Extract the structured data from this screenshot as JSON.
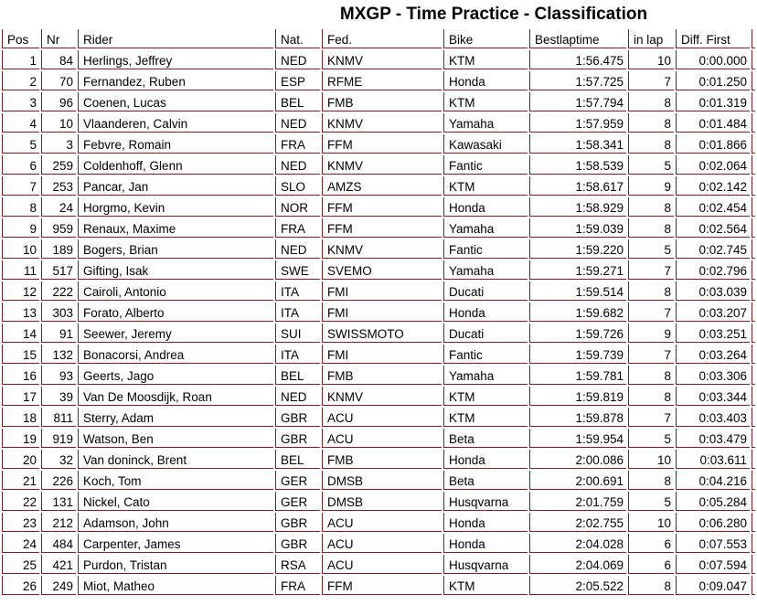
{
  "title": "MXGP - Time Practice - Classification",
  "colors": {
    "border": "#802020",
    "text": "#000000",
    "background": "#ffffff"
  },
  "table": {
    "columns": [
      {
        "key": "pos",
        "label": "Pos",
        "align": "right"
      },
      {
        "key": "nr",
        "label": "Nr",
        "align": "right"
      },
      {
        "key": "rider",
        "label": "Rider",
        "align": "left"
      },
      {
        "key": "nat",
        "label": "Nat.",
        "align": "left"
      },
      {
        "key": "fed",
        "label": "Fed.",
        "align": "left"
      },
      {
        "key": "bike",
        "label": "Bike",
        "align": "left"
      },
      {
        "key": "best",
        "label": "Bestlaptime",
        "align": "right"
      },
      {
        "key": "lap",
        "label": "in lap",
        "align": "right"
      },
      {
        "key": "diff",
        "label": "Diff. First",
        "align": "right"
      }
    ],
    "rows": [
      {
        "pos": "1",
        "nr": "84",
        "rider": "Herlings, Jeffrey",
        "nat": "NED",
        "fed": "KNMV",
        "bike": "KTM",
        "best": "1:56.475",
        "lap": "10",
        "diff": "0:00.000"
      },
      {
        "pos": "2",
        "nr": "70",
        "rider": "Fernandez, Ruben",
        "nat": "ESP",
        "fed": "RFME",
        "bike": "Honda",
        "best": "1:57.725",
        "lap": "7",
        "diff": "0:01.250"
      },
      {
        "pos": "3",
        "nr": "96",
        "rider": "Coenen, Lucas",
        "nat": "BEL",
        "fed": "FMB",
        "bike": "KTM",
        "best": "1:57.794",
        "lap": "8",
        "diff": "0:01.319"
      },
      {
        "pos": "4",
        "nr": "10",
        "rider": "Vlaanderen, Calvin",
        "nat": "NED",
        "fed": "KNMV",
        "bike": "Yamaha",
        "best": "1:57.959",
        "lap": "8",
        "diff": "0:01.484"
      },
      {
        "pos": "5",
        "nr": "3",
        "rider": "Febvre, Romain",
        "nat": "FRA",
        "fed": "FFM",
        "bike": "Kawasaki",
        "best": "1:58.341",
        "lap": "8",
        "diff": "0:01.866"
      },
      {
        "pos": "6",
        "nr": "259",
        "rider": "Coldenhoff, Glenn",
        "nat": "NED",
        "fed": "KNMV",
        "bike": "Fantic",
        "best": "1:58.539",
        "lap": "5",
        "diff": "0:02.064"
      },
      {
        "pos": "7",
        "nr": "253",
        "rider": "Pancar, Jan",
        "nat": "SLO",
        "fed": "AMZS",
        "bike": "KTM",
        "best": "1:58.617",
        "lap": "9",
        "diff": "0:02.142"
      },
      {
        "pos": "8",
        "nr": "24",
        "rider": "Horgmo, Kevin",
        "nat": "NOR",
        "fed": "FFM",
        "bike": "Honda",
        "best": "1:58.929",
        "lap": "8",
        "diff": "0:02.454"
      },
      {
        "pos": "9",
        "nr": "959",
        "rider": "Renaux, Maxime",
        "nat": "FRA",
        "fed": "FFM",
        "bike": "Yamaha",
        "best": "1:59.039",
        "lap": "8",
        "diff": "0:02.564"
      },
      {
        "pos": "10",
        "nr": "189",
        "rider": "Bogers, Brian",
        "nat": "NED",
        "fed": "KNMV",
        "bike": "Fantic",
        "best": "1:59.220",
        "lap": "5",
        "diff": "0:02.745"
      },
      {
        "pos": "11",
        "nr": "517",
        "rider": "Gifting, Isak",
        "nat": "SWE",
        "fed": "SVEMO",
        "bike": "Yamaha",
        "best": "1:59.271",
        "lap": "7",
        "diff": "0:02.796"
      },
      {
        "pos": "12",
        "nr": "222",
        "rider": "Cairoli, Antonio",
        "nat": "ITA",
        "fed": "FMI",
        "bike": "Ducati",
        "best": "1:59.514",
        "lap": "8",
        "diff": "0:03.039"
      },
      {
        "pos": "13",
        "nr": "303",
        "rider": "Forato, Alberto",
        "nat": "ITA",
        "fed": "FMI",
        "bike": "Honda",
        "best": "1:59.682",
        "lap": "7",
        "diff": "0:03.207"
      },
      {
        "pos": "14",
        "nr": "91",
        "rider": "Seewer, Jeremy",
        "nat": "SUI",
        "fed": "SWISSMOTO",
        "bike": "Ducati",
        "best": "1:59.726",
        "lap": "9",
        "diff": "0:03.251"
      },
      {
        "pos": "15",
        "nr": "132",
        "rider": "Bonacorsi, Andrea",
        "nat": "ITA",
        "fed": "FMI",
        "bike": "Fantic",
        "best": "1:59.739",
        "lap": "7",
        "diff": "0:03.264"
      },
      {
        "pos": "16",
        "nr": "93",
        "rider": "Geerts, Jago",
        "nat": "BEL",
        "fed": "FMB",
        "bike": "Yamaha",
        "best": "1:59.781",
        "lap": "8",
        "diff": "0:03.306"
      },
      {
        "pos": "17",
        "nr": "39",
        "rider": "Van De Moosdijk, Roan",
        "nat": "NED",
        "fed": "KNMV",
        "bike": "KTM",
        "best": "1:59.819",
        "lap": "8",
        "diff": "0:03.344"
      },
      {
        "pos": "18",
        "nr": "811",
        "rider": "Sterry, Adam",
        "nat": "GBR",
        "fed": "ACU",
        "bike": "KTM",
        "best": "1:59.878",
        "lap": "7",
        "diff": "0:03.403"
      },
      {
        "pos": "19",
        "nr": "919",
        "rider": "Watson, Ben",
        "nat": "GBR",
        "fed": "ACU",
        "bike": "Beta",
        "best": "1:59.954",
        "lap": "5",
        "diff": "0:03.479"
      },
      {
        "pos": "20",
        "nr": "32",
        "rider": "Van doninck, Brent",
        "nat": "BEL",
        "fed": "FMB",
        "bike": "Honda",
        "best": "2:00.086",
        "lap": "10",
        "diff": "0:03.611"
      },
      {
        "pos": "21",
        "nr": "226",
        "rider": "Koch, Tom",
        "nat": "GER",
        "fed": "DMSB",
        "bike": "Beta",
        "best": "2:00.691",
        "lap": "8",
        "diff": "0:04.216"
      },
      {
        "pos": "22",
        "nr": "131",
        "rider": "Nickel, Cato",
        "nat": "GER",
        "fed": "DMSB",
        "bike": "Husqvarna",
        "best": "2:01.759",
        "lap": "5",
        "diff": "0:05.284"
      },
      {
        "pos": "23",
        "nr": "212",
        "rider": "Adamson, John",
        "nat": "GBR",
        "fed": "ACU",
        "bike": "Honda",
        "best": "2:02.755",
        "lap": "10",
        "diff": "0:06.280"
      },
      {
        "pos": "24",
        "nr": "484",
        "rider": "Carpenter, James",
        "nat": "GBR",
        "fed": "ACU",
        "bike": "Honda",
        "best": "2:04.028",
        "lap": "6",
        "diff": "0:07.553"
      },
      {
        "pos": "25",
        "nr": "421",
        "rider": "Purdon, Tristan",
        "nat": "RSA",
        "fed": "ACU",
        "bike": "Husqvarna",
        "best": "2:04.069",
        "lap": "6",
        "diff": "0:07.594"
      },
      {
        "pos": "26",
        "nr": "249",
        "rider": "Miot, Matheo",
        "nat": "FRA",
        "fed": "FFM",
        "bike": "KTM",
        "best": "2:05.522",
        "lap": "8",
        "diff": "0:09.047"
      }
    ]
  }
}
